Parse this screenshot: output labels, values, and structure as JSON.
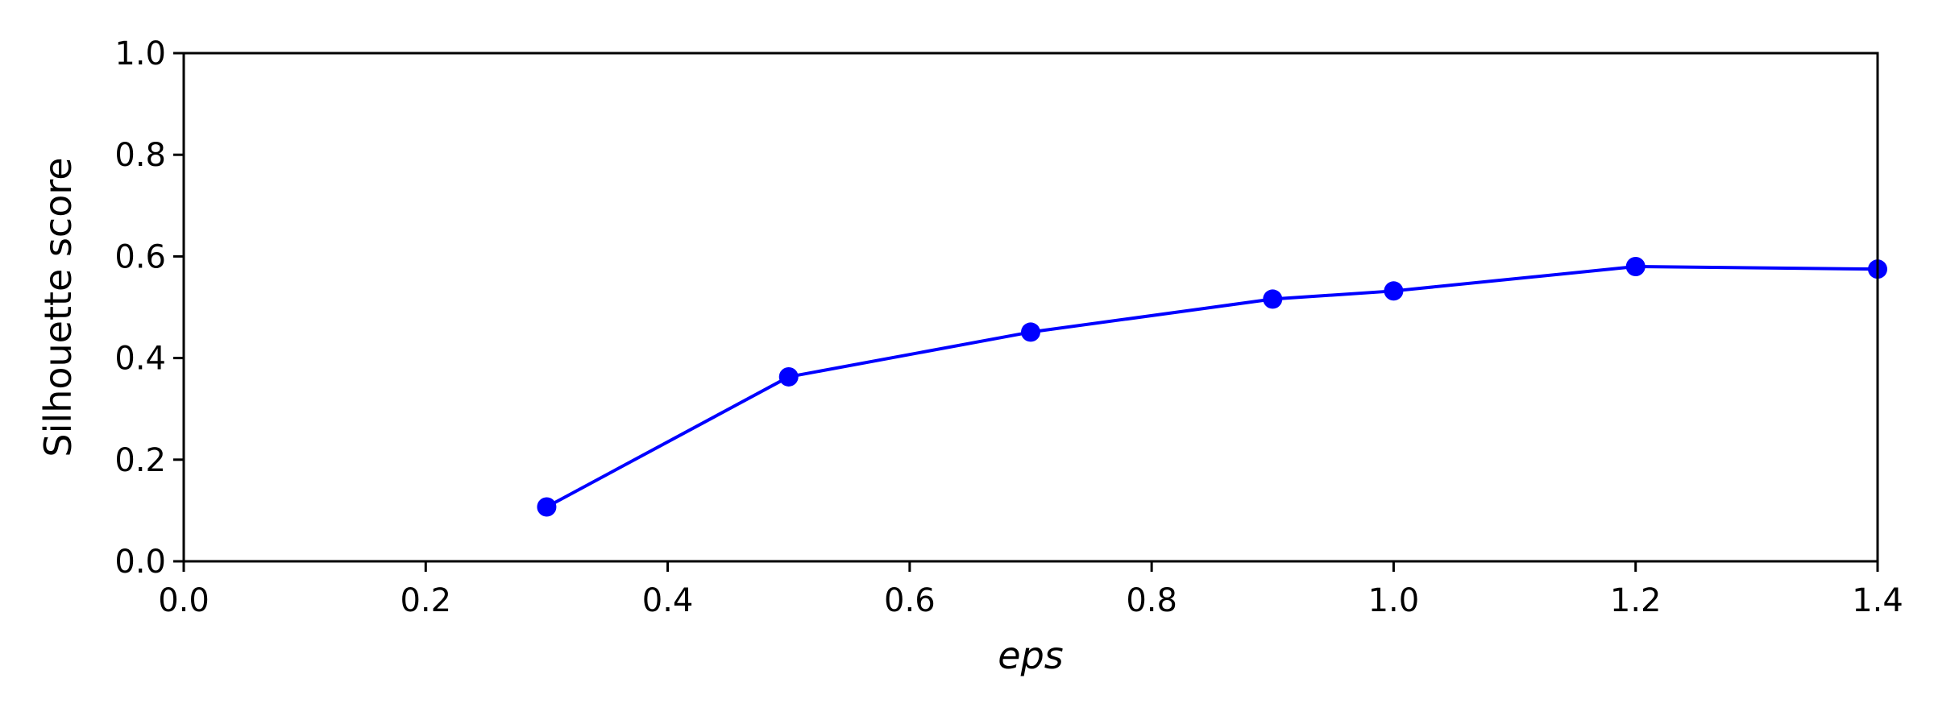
{
  "chart_data": {
    "type": "line",
    "title": "",
    "xlabel": "eps",
    "ylabel": "Silhouette score",
    "xlim": [
      0.0,
      1.4
    ],
    "ylim": [
      0.0,
      1.0
    ],
    "xticks": [
      "0.0",
      "0.2",
      "0.4",
      "0.6",
      "0.8",
      "1.0",
      "1.2",
      "1.4"
    ],
    "yticks": [
      "0.0",
      "0.2",
      "0.4",
      "0.6",
      "0.8",
      "1.0"
    ],
    "grid": false,
    "series": [
      {
        "x": [
          0.3,
          0.5,
          0.7,
          0.9,
          1.0,
          1.2,
          1.4
        ],
        "y": [
          0.107,
          0.363,
          0.451,
          0.516,
          0.532,
          0.58,
          0.575
        ]
      }
    ],
    "colors": {
      "series": "#0000ff",
      "axis": "#000000",
      "background": "#ffffff"
    },
    "marker": "circle"
  }
}
